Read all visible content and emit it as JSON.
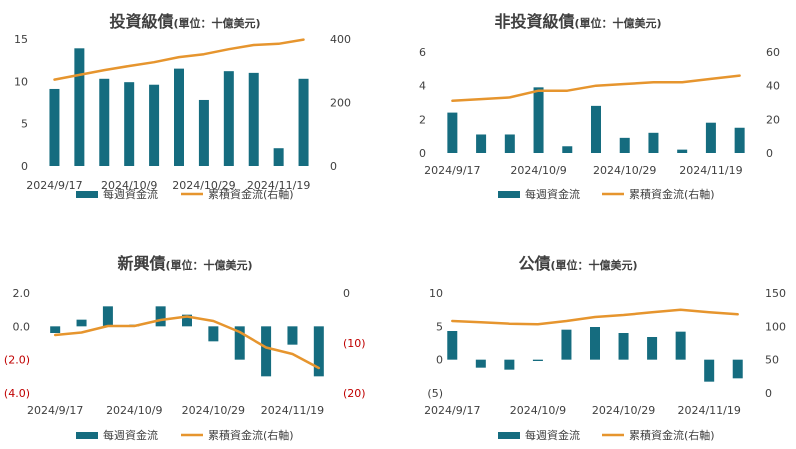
{
  "colors": {
    "bar": "#156c7f",
    "line": "#e6952e",
    "text": "#404040",
    "negative_tick": "#c00000"
  },
  "chart_data": [
    {
      "type": "bar",
      "title": "投資級債",
      "title_unit": "(單位：十億美元)",
      "x_tick_labels": [
        "2024/9/17",
        "2024/10/9",
        "2024/10/29",
        "2024/11/19"
      ],
      "y_tick_labels": [
        "0",
        "5",
        "10",
        "15"
      ],
      "y2_tick_labels": [
        "0",
        "200",
        "400"
      ],
      "ylim": [
        0,
        15
      ],
      "y2lim": [
        0,
        400
      ],
      "series": [
        {
          "name": "每週資金流",
          "type": "bar",
          "axis": "left",
          "values": [
            9.1,
            13.9,
            10.3,
            9.9,
            9.6,
            11.5,
            7.8,
            11.2,
            11.0,
            2.1,
            10.3
          ]
        },
        {
          "name": "累積資金流(右軸)",
          "type": "line",
          "axis": "right",
          "values": [
            272,
            287,
            302,
            315,
            327,
            343,
            352,
            368,
            381,
            385,
            398
          ]
        }
      ],
      "legend": [
        "每週資金流",
        "累積資金流(右軸)"
      ],
      "legend_position": "bottom"
    },
    {
      "type": "bar",
      "title": "非投資級債",
      "title_unit": "(單位：十億美元)",
      "x_tick_labels": [
        "2024/9/17",
        "2024/10/9",
        "2024/10/29",
        "2024/11/19"
      ],
      "y_tick_labels": [
        "0",
        "2",
        "4",
        "6"
      ],
      "y2_tick_labels": [
        "0",
        "20",
        "40",
        "60"
      ],
      "ylim": [
        0,
        6
      ],
      "y2lim": [
        0,
        60
      ],
      "series": [
        {
          "name": "每週資金流",
          "type": "bar",
          "axis": "left",
          "values": [
            2.4,
            1.1,
            1.1,
            3.9,
            0.4,
            2.8,
            0.9,
            1.2,
            0.2,
            1.8,
            1.5
          ]
        },
        {
          "name": "累積資金流(右軸)",
          "type": "line",
          "axis": "right",
          "values": [
            31,
            32,
            33,
            37,
            37,
            40,
            41,
            42,
            42,
            44,
            46
          ]
        }
      ],
      "legend": [
        "每週資金流",
        "累積資金流(右軸)"
      ],
      "legend_position": "bottom"
    },
    {
      "type": "bar",
      "title": "新興債",
      "title_unit": "(單位：十億美元)",
      "x_tick_labels": [
        "2024/9/17",
        "2024/10/9",
        "2024/10/29",
        "2024/11/19"
      ],
      "y_tick_labels": [
        "(4.0)",
        "(2.0)",
        "0.0",
        "2.0"
      ],
      "y2_tick_labels": [
        "(20)",
        "(10)",
        "0"
      ],
      "ylim": [
        -4,
        2
      ],
      "y2lim": [
        -20,
        0
      ],
      "series": [
        {
          "name": "每週資金流",
          "type": "bar",
          "axis": "left",
          "values": [
            -0.4,
            0.4,
            1.2,
            0.1,
            1.2,
            0.7,
            -0.9,
            -2.0,
            -3.0,
            -1.1,
            -3.0
          ]
        },
        {
          "name": "累積資金流(右軸)",
          "type": "line",
          "axis": "right",
          "values": [
            -8.4,
            -7.9,
            -6.6,
            -6.6,
            -5.4,
            -4.7,
            -5.6,
            -7.8,
            -10.9,
            -12.2,
            -15.0
          ]
        }
      ],
      "legend": [
        "每週資金流",
        "累積資金流(右軸)"
      ],
      "legend_position": "bottom"
    },
    {
      "type": "bar",
      "title": "公債",
      "title_unit": "(單位：十億美元)",
      "x_tick_labels": [
        "2024/9/17",
        "2024/10/9",
        "2024/10/29",
        "2024/11/19"
      ],
      "y_tick_labels": [
        "(5)",
        "0",
        "5",
        "10"
      ],
      "y2_tick_labels": [
        "0",
        "50",
        "100",
        "150"
      ],
      "ylim": [
        -5,
        10
      ],
      "y2lim": [
        0,
        150
      ],
      "series": [
        {
          "name": "每週資金流",
          "type": "bar",
          "axis": "left",
          "values": [
            4.3,
            -1.2,
            -1.5,
            -0.2,
            4.5,
            4.9,
            4.0,
            3.4,
            4.2,
            -3.3,
            -2.8
          ]
        },
        {
          "name": "累積資金流(右軸)",
          "type": "line",
          "axis": "right",
          "values": [
            108,
            106,
            104,
            103,
            108,
            114,
            117,
            121,
            125,
            121,
            118
          ]
        }
      ],
      "legend": [
        "每週資金流",
        "累積資金流(右軸)"
      ],
      "legend_position": "bottom"
    }
  ]
}
